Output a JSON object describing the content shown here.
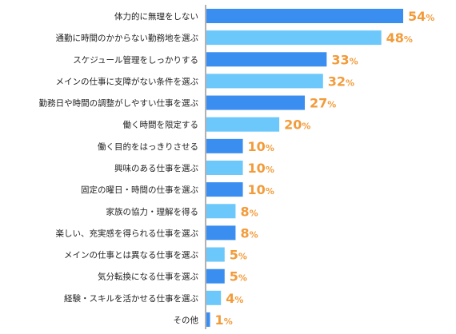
{
  "chart_data": {
    "type": "bar",
    "orientation": "horizontal",
    "categories": [
      "体力的に無理をしない",
      "通勤に時間のかからない勤務地を選ぶ",
      "スケジュール管理をしっかりする",
      "メインの仕事に支障がない条件を選ぶ",
      "勤務日や時間の調整がしやすい仕事を選ぶ",
      "働く時間を限定する",
      "働く目的をはっきりさせる",
      "興味のある仕事を選ぶ",
      "固定の曜日・時間の仕事を選ぶ",
      "家族の協力・理解を得る",
      "楽しい、充実感を得られる仕事を選ぶ",
      "メインの仕事とは異なる仕事を選ぶ",
      "気分転換になる仕事を選ぶ",
      "経験・スキルを活かせる仕事を選ぶ",
      "その他"
    ],
    "values": [
      54,
      48,
      33,
      32,
      27,
      20,
      10,
      10,
      10,
      8,
      8,
      5,
      5,
      4,
      1
    ],
    "value_suffix": "%",
    "xlim": [
      0,
      54
    ],
    "grid": false,
    "legend": "none",
    "colors": {
      "bar_dark": "#3a8ef0",
      "bar_light": "#6cc7fa",
      "value_label": "#f29b3a",
      "axis": "#666666"
    }
  }
}
